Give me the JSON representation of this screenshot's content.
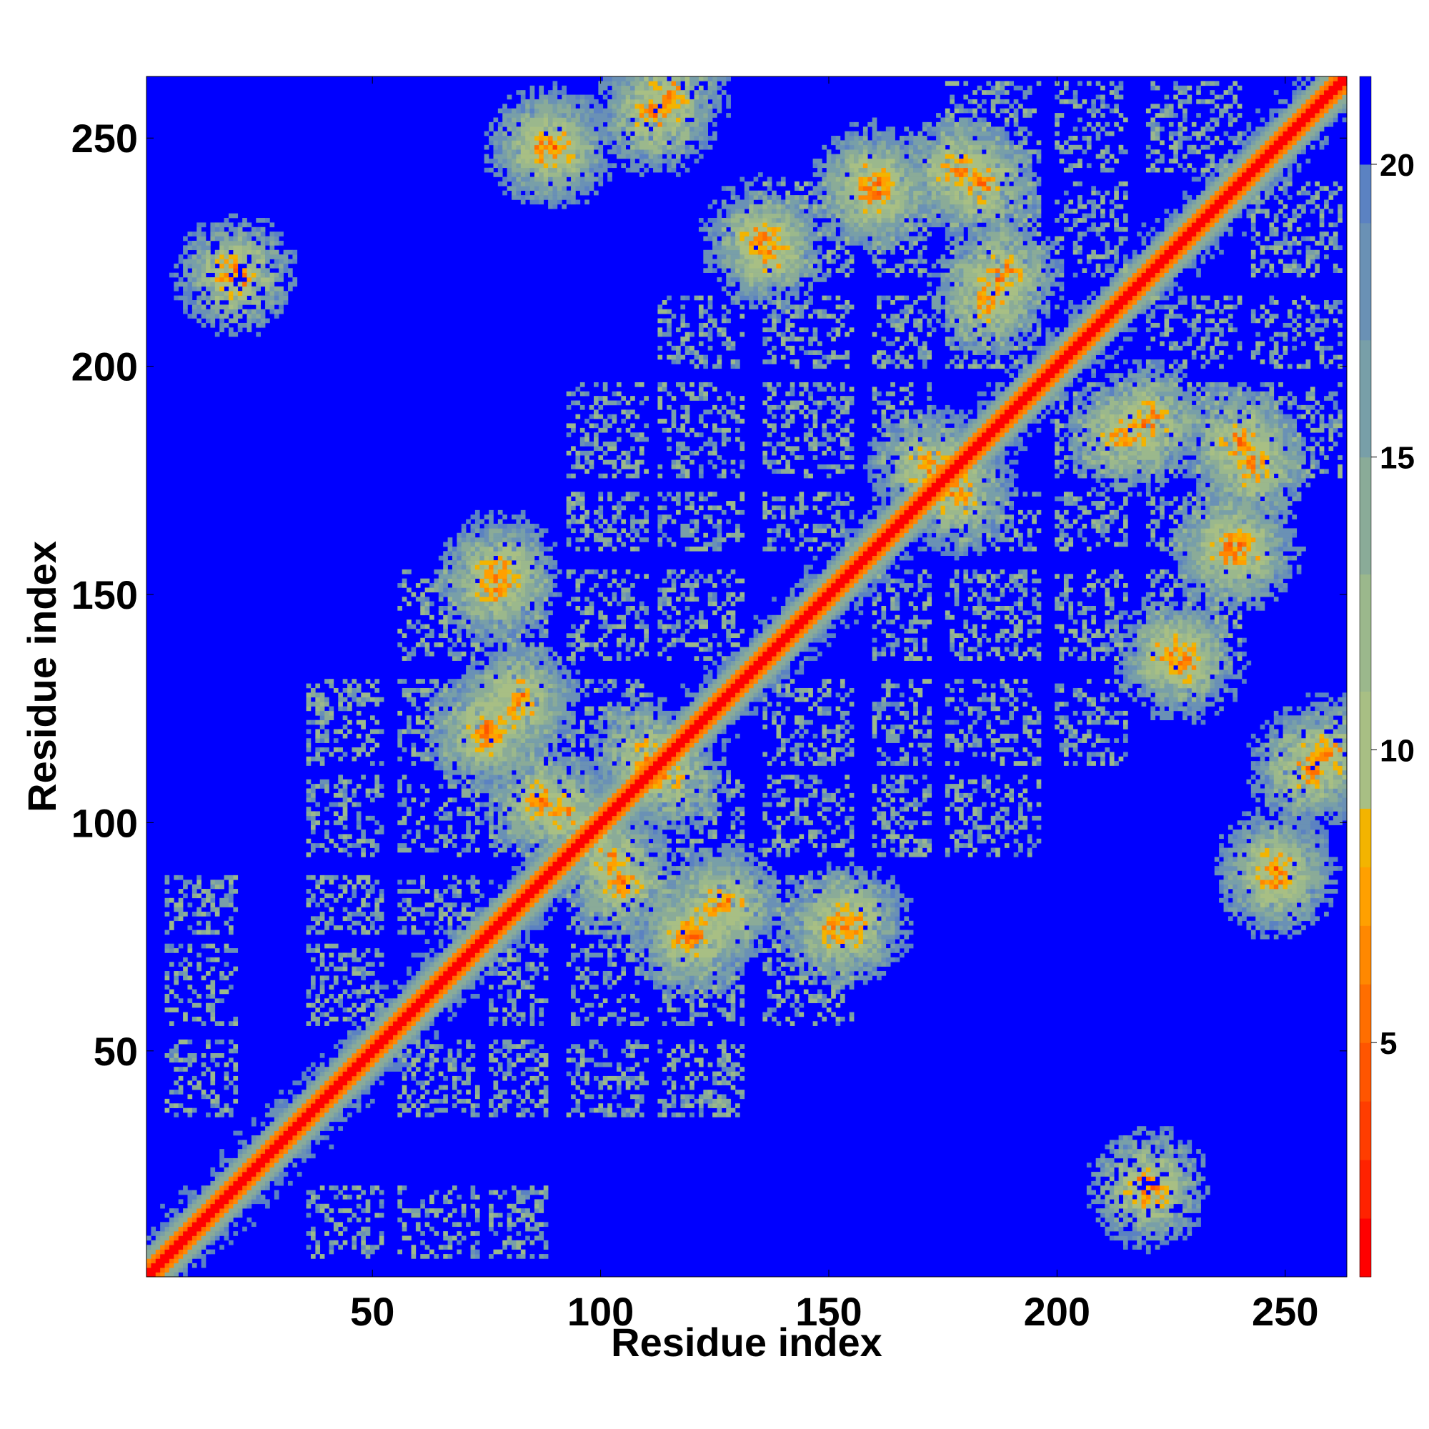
{
  "chart_data": {
    "type": "heatmap",
    "description_title": "",
    "xlabel": "Residue index",
    "ylabel": "Residue index",
    "n_residues": 263,
    "xlim": [
      1,
      263
    ],
    "ylim": [
      1,
      263
    ],
    "x_ticks": [
      50,
      100,
      150,
      200,
      250
    ],
    "y_ticks": [
      50,
      100,
      150,
      200,
      250
    ],
    "colorbar": {
      "ticks": [
        5,
        10,
        15,
        20
      ],
      "range": [
        1,
        21.5
      ],
      "levels": [
        {
          "max": 2,
          "color": "#ff0000"
        },
        {
          "max": 3,
          "color": "#ff2200"
        },
        {
          "max": 4,
          "color": "#ff3d00"
        },
        {
          "max": 5,
          "color": "#ff5500"
        },
        {
          "max": 6,
          "color": "#ff6e00"
        },
        {
          "max": 7,
          "color": "#ff8800"
        },
        {
          "max": 8,
          "color": "#ffa000"
        },
        {
          "max": 9,
          "color": "#f3b400"
        },
        {
          "max": 11,
          "color": "#a8bf84"
        },
        {
          "max": 13,
          "color": "#9bb88c"
        },
        {
          "max": 15,
          "color": "#8aab98"
        },
        {
          "max": 17,
          "color": "#789fa8"
        },
        {
          "max": 19,
          "color": "#6a91b5"
        },
        {
          "max": 20,
          "color": "#5b82c2"
        },
        {
          "max": 21.5,
          "color": "#0000ff"
        }
      ]
    },
    "background_value": 21.5,
    "diagonal_width": 4,
    "helices": [
      [
        5,
        20
      ],
      [
        36,
        52
      ],
      [
        56,
        73
      ],
      [
        76,
        88
      ],
      [
        93,
        110
      ],
      [
        113,
        131
      ],
      [
        136,
        155
      ],
      [
        160,
        172
      ],
      [
        176,
        196
      ],
      [
        200,
        215
      ],
      [
        220,
        240
      ],
      [
        243,
        262
      ]
    ],
    "contacts": [
      {
        "i": 20,
        "j": 220,
        "strength": 0.8
      },
      {
        "i": 120,
        "j": 75,
        "strength": 0.7
      },
      {
        "i": 155,
        "j": 78,
        "strength": 0.7
      },
      {
        "i": 125,
        "j": 82,
        "strength": 0.6
      },
      {
        "i": 88,
        "j": 248,
        "strength": 0.7
      },
      {
        "i": 112,
        "j": 255,
        "strength": 0.7
      },
      {
        "i": 160,
        "j": 240,
        "strength": 0.8
      },
      {
        "i": 135,
        "j": 228,
        "strength": 0.6
      },
      {
        "i": 183,
        "j": 240,
        "strength": 0.7
      },
      {
        "i": 188,
        "j": 220,
        "strength": 0.7
      },
      {
        "i": 172,
        "j": 178,
        "strength": 0.7
      },
      {
        "i": 215,
        "j": 185,
        "strength": 0.7
      },
      {
        "i": 243,
        "j": 178,
        "strength": 0.7
      },
      {
        "i": 238,
        "j": 160,
        "strength": 0.7
      },
      {
        "i": 225,
        "j": 137,
        "strength": 0.6
      },
      {
        "i": 248,
        "j": 90,
        "strength": 0.6
      },
      {
        "i": 260,
        "j": 115,
        "strength": 0.6
      },
      {
        "i": 77,
        "j": 152,
        "strength": 0.7
      },
      {
        "i": 82,
        "j": 128,
        "strength": 0.6
      },
      {
        "i": 75,
        "j": 120,
        "strength": 0.6
      },
      {
        "i": 105,
        "j": 87,
        "strength": 0.6
      },
      {
        "i": 92,
        "j": 102,
        "strength": 0.5
      },
      {
        "i": 110,
        "j": 115,
        "strength": 0.5
      }
    ]
  }
}
